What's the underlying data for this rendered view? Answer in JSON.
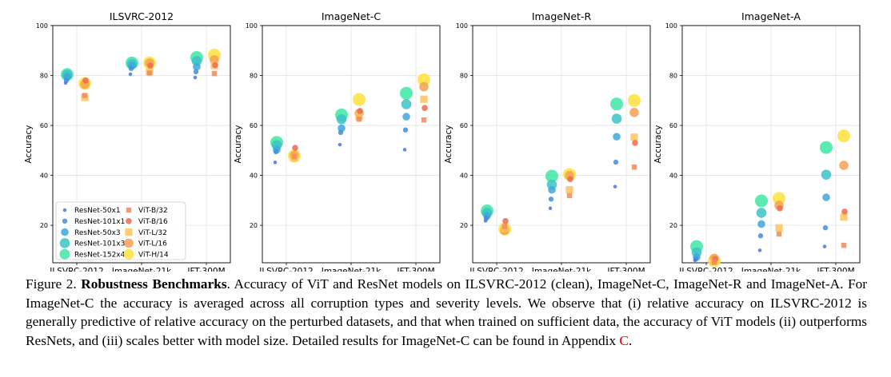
{
  "figure": {
    "colors": {
      "ResNet-50x1": "#4a78e0",
      "ResNet-101x1": "#3f8ee0",
      "ResNet-50x3": "#3fa8d8",
      "ResNet-101x3": "#3cc3c6",
      "ResNet-152x4": "#3ee6a4",
      "ViT-B/32": "#f08a5a",
      "ViT-B/16": "#ee6a50",
      "ViT-L/32": "#ffc25a",
      "ViT-L/16": "#f7a050",
      "ViT-H/14": "#ffe23c"
    },
    "legend": {
      "placement": "lower-left (first panel)",
      "entries": [
        "ResNet-50x1",
        "ResNet-101x1",
        "ResNet-50x3",
        "ResNet-101x3",
        "ResNet-152x4",
        "ViT-B/32",
        "ViT-B/16",
        "ViT-L/32",
        "ViT-L/16",
        "ViT-H/14"
      ]
    }
  },
  "chart_data": [
    {
      "type": "scatter",
      "title": "ILSVRC-2012",
      "ylabel": "Accuracy",
      "xlabel": "",
      "categories": [
        "ILSVRC-2012",
        "ImageNet-21k",
        "JFT-300M"
      ],
      "ylim": [
        5,
        100
      ],
      "yticks": [
        20,
        40,
        60,
        80,
        100
      ],
      "grid": true,
      "series": [
        {
          "name": "ResNet-50x1",
          "values": [
            77,
            80.5,
            79.2
          ]
        },
        {
          "name": "ResNet-101x1",
          "values": [
            78,
            82.8,
            81.5
          ]
        },
        {
          "name": "ResNet-50x3",
          "values": [
            79.5,
            84,
            83.5
          ]
        },
        {
          "name": "ResNet-101x3",
          "values": [
            80.3,
            84.6,
            85.8
          ]
        },
        {
          "name": "ResNet-152x4",
          "values": [
            80.4,
            85,
            87.2
          ]
        },
        {
          "name": "ViT-B/32",
          "values": [
            72,
            81,
            80.8
          ]
        },
        {
          "name": "ViT-B/16",
          "values": [
            78,
            84,
            84.2
          ]
        },
        {
          "name": "ViT-L/32",
          "values": [
            71.2,
            81.5,
            84
          ]
        },
        {
          "name": "ViT-L/16",
          "values": [
            76.5,
            85,
            86.3
          ]
        },
        {
          "name": "ViT-H/14",
          "values": [
            76.8,
            85.1,
            88.2
          ]
        }
      ]
    },
    {
      "type": "scatter",
      "title": "ImageNet-C",
      "ylabel": "Accuracy",
      "xlabel": "",
      "categories": [
        "ILSVRC-2012",
        "ImageNet-21k",
        "JFT-300M"
      ],
      "ylim": [
        5,
        100
      ],
      "yticks": [
        20,
        40,
        60,
        80,
        100
      ],
      "grid": true,
      "series": [
        {
          "name": "ResNet-50x1",
          "values": [
            45.2,
            52.3,
            50.3
          ]
        },
        {
          "name": "ResNet-101x1",
          "values": [
            49.5,
            57.2,
            58.2
          ]
        },
        {
          "name": "ResNet-50x3",
          "values": [
            50.3,
            58.9,
            63.5
          ]
        },
        {
          "name": "ResNet-101x3",
          "values": [
            52.1,
            62.5,
            68.5
          ]
        },
        {
          "name": "ResNet-152x4",
          "values": [
            53.2,
            64.2,
            72.9
          ]
        },
        {
          "name": "ViT-B/32",
          "values": [
            47.5,
            62.5,
            62.2
          ]
        },
        {
          "name": "ViT-B/16",
          "values": [
            51,
            65.8,
            67
          ]
        },
        {
          "name": "ViT-L/32",
          "values": [
            46.9,
            63.5,
            70.5
          ]
        },
        {
          "name": "ViT-L/16",
          "values": [
            48,
            64.8,
            75.5
          ]
        },
        {
          "name": "ViT-H/14",
          "values": [
            47.8,
            70.4,
            78.3
          ]
        }
      ]
    },
    {
      "type": "scatter",
      "title": "ImageNet-R",
      "ylabel": "Accuracy",
      "xlabel": "",
      "categories": [
        "ILSVRC-2012",
        "ImageNet-21k",
        "JFT-300M"
      ],
      "ylim": [
        5,
        100
      ],
      "yticks": [
        20,
        40,
        60,
        80,
        100
      ],
      "grid": true,
      "series": [
        {
          "name": "ResNet-50x1",
          "values": [
            21.8,
            26.8,
            35.5
          ]
        },
        {
          "name": "ResNet-101x1",
          "values": [
            22.8,
            30.5,
            45.3
          ]
        },
        {
          "name": "ResNet-50x3",
          "values": [
            23.8,
            34.2,
            55.5
          ]
        },
        {
          "name": "ResNet-101x3",
          "values": [
            25,
            36.3,
            62.7
          ]
        },
        {
          "name": "ResNet-152x4",
          "values": [
            25.8,
            39.7,
            68.6
          ]
        },
        {
          "name": "ViT-B/32",
          "values": [
            19.5,
            31.9,
            43.3
          ]
        },
        {
          "name": "ViT-B/16",
          "values": [
            21.7,
            38.5,
            53
          ]
        },
        {
          "name": "ViT-L/32",
          "values": [
            18.7,
            34.2,
            55.3
          ]
        },
        {
          "name": "ViT-L/16",
          "values": [
            18,
            40,
            65.2
          ]
        },
        {
          "name": "ViT-H/14",
          "values": [
            18.5,
            40.4,
            70
          ]
        }
      ]
    },
    {
      "type": "scatter",
      "title": "ImageNet-A",
      "ylabel": "Accuracy",
      "xlabel": "",
      "categories": [
        "ILSVRC-2012",
        "ImageNet-21k",
        "JFT-300M"
      ],
      "ylim": [
        5,
        100
      ],
      "yticks": [
        20,
        40,
        60,
        80,
        100
      ],
      "grid": true,
      "series": [
        {
          "name": "ResNet-50x1",
          "values": [
            6,
            10,
            11.5
          ]
        },
        {
          "name": "ResNet-101x1",
          "values": [
            6.5,
            15.8,
            19
          ]
        },
        {
          "name": "ResNet-50x3",
          "values": [
            7.3,
            20.5,
            31.2
          ]
        },
        {
          "name": "ResNet-101x3",
          "values": [
            9.2,
            25,
            40.3
          ]
        },
        {
          "name": "ResNet-152x4",
          "values": [
            11.5,
            29.8,
            51.2
          ]
        },
        {
          "name": "ViT-B/32",
          "values": [
            5.2,
            16.5,
            12
          ]
        },
        {
          "name": "ViT-B/16",
          "values": [
            6.5,
            26.8,
            25.5
          ]
        },
        {
          "name": "ViT-L/32",
          "values": [
            5.5,
            19,
            23.3
          ]
        },
        {
          "name": "ViT-L/16",
          "values": [
            6.8,
            28,
            44
          ]
        },
        {
          "name": "ViT-H/14",
          "values": [
            5.8,
            30.8,
            55.8
          ]
        }
      ]
    }
  ],
  "caption": {
    "figure_number": "Figure 2.",
    "title": "Robustness Benchmarks",
    "text": ".  Accuracy of ViT and ResNet models on ILSVRC-2012 (clean), ImageNet-C, ImageNet-R and ImageNet-A. For ImageNet-C the accuracy is averaged across all corruption types and severity levels. We observe that (i) relative accuracy on ILSVRC-2012 is generally predictive of relative accuracy on the perturbed datasets, and that when trained on sufficient data, the accuracy of ViT models (ii) outperforms ResNets, and (iii) scales better with model size. Detailed results for ImageNet-C can be found in Appendix",
    "appendix_ref": "C",
    "end": "."
  }
}
